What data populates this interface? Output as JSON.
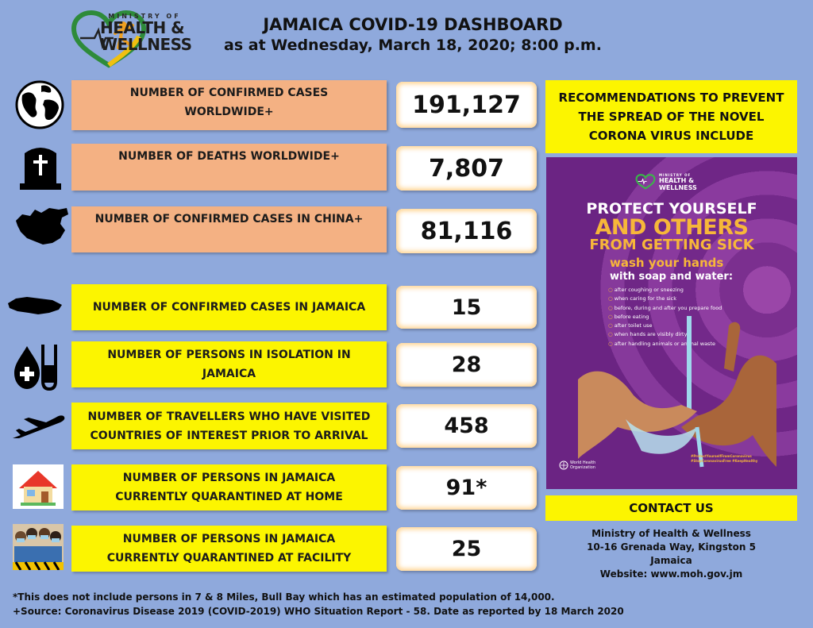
{
  "header": {
    "logo_mini": "MINISTRY OF",
    "logo_line1": "HEALTH",
    "logo_amp": "&",
    "logo_line2": "WELLNESS",
    "title": "JAMAICA COVID-19 DASHBOARD",
    "subtitle": "as at Wednesday, March 18, 2020; 8:00 p.m."
  },
  "stats": [
    {
      "label": "NUMBER OF CONFIRMED CASES WORLDWIDE+",
      "value": "191,127",
      "icon": "globe-icon"
    },
    {
      "label": "NUMBER OF DEATHS WORLDWIDE+",
      "value": "7,807",
      "icon": "tombstone-icon"
    },
    {
      "label": "NUMBER OF CONFIRMED CASES IN CHINA+",
      "value": "81,116",
      "icon": "china-map-icon"
    },
    {
      "label": "NUMBER OF CONFIRMED CASES IN JAMAICA",
      "value": "15",
      "icon": "jamaica-map-icon"
    },
    {
      "label": "NUMBER OF PERSONS IN ISOLATION IN JAMAICA",
      "value": "28",
      "icon": "blood-test-tube-icon"
    },
    {
      "label": "NUMBER OF TRAVELLERS WHO HAVE VISITED COUNTRIES OF INTEREST PRIOR TO ARRIVAL",
      "value": "458",
      "icon": "airplane-icon"
    },
    {
      "label": "NUMBER OF PERSONS IN JAMAICA CURRENTLY QUARANTINED AT HOME",
      "value": "91*",
      "icon": "house-icon"
    },
    {
      "label": "NUMBER OF PERSONS IN JAMAICA CURRENTLY QUARANTINED AT FACILITY",
      "value": "25",
      "icon": "masked-people-icon"
    }
  ],
  "recommendations": {
    "heading": "RECOMMENDATIONS TO PREVENT THE SPREAD OF THE NOVEL CORONA VIRUS INCLUDE"
  },
  "poster": {
    "logo_mini": "MINISTRY OF",
    "logo_line1": "HEALTH &",
    "logo_line2": "WELLNESS",
    "headline1": "PROTECT YOURSELF",
    "headline2": "AND OTHERS",
    "headline3": "FROM GETTING SICK",
    "wash_title": "wash your hands",
    "wash_sub": "with soap and water:",
    "tips": [
      "after coughing or sneezing",
      "when caring for the sick",
      "before, during and after you prepare food",
      "before eating",
      "after toilet use",
      "when hands are visibly dirty",
      "after handling animals or animal waste"
    ],
    "hashtags": "#ProtectYourselfFromCoronavirus #StopCoronavirusFree #KeepHealthy",
    "who_line1": "World Health",
    "who_line2": "Organization"
  },
  "contact": {
    "heading": "CONTACT US",
    "org": "Ministry of Health & Wellness",
    "address": "10-16 Grenada Way, Kingston 5",
    "country": "Jamaica",
    "website": "Website: www.moh.gov.jm"
  },
  "footnotes": {
    "note1": "*This does not include persons in 7 & 8 Miles, Bull Bay  which has an estimated population of 14,000.",
    "note2": "+Source: Coronavirus Disease 2019 (COVID-2019) WHO Situation Report - 58. Date as reported by 18 March 2020"
  },
  "colors": {
    "background": "#8fa9dc",
    "peach": "#f4b183",
    "yellow": "#fcf500",
    "poster_purple": "#7b2f8f",
    "poster_orange": "#f7b739"
  }
}
